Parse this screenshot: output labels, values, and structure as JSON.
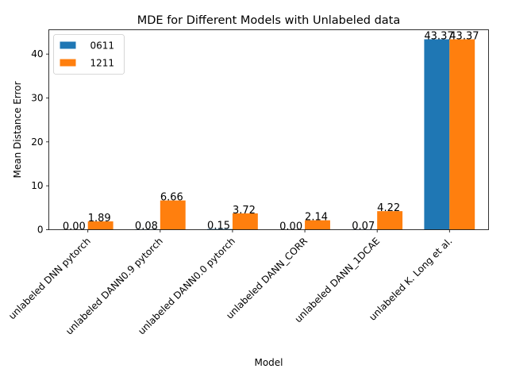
{
  "chart_data": {
    "type": "bar",
    "title": "MDE for Different Models with Unlabeled data",
    "xlabel": "Model",
    "ylabel": "Mean Distance Error",
    "categories": [
      "unlabeled DNN pytorch",
      "unlabeled DANN0.9 pytorch",
      "unlabeled DANN0.0 pytorch",
      "unlabeled DANN_CORR",
      "unlabeled DANN_1DCAE",
      "unlabeled K. Long et al."
    ],
    "series": [
      {
        "name": "0611",
        "color": "#1f77b4",
        "values": [
          0.0,
          0.08,
          0.15,
          0.0,
          0.07,
          43.37
        ],
        "labels": [
          "0.00",
          "0.08",
          "0.15",
          "0.00",
          "0.07",
          "43.37"
        ]
      },
      {
        "name": "1211",
        "color": "#ff7f0e",
        "values": [
          1.89,
          6.66,
          3.72,
          2.14,
          4.22,
          43.37
        ],
        "labels": [
          "1.89",
          "6.66",
          "3.72",
          "2.14",
          "4.22",
          "43.37"
        ]
      }
    ],
    "ylim": [
      0,
      45.54
    ],
    "yticks": [
      "0",
      "10",
      "20",
      "30",
      "40"
    ],
    "legend_position": "top-left",
    "grid": false
  }
}
